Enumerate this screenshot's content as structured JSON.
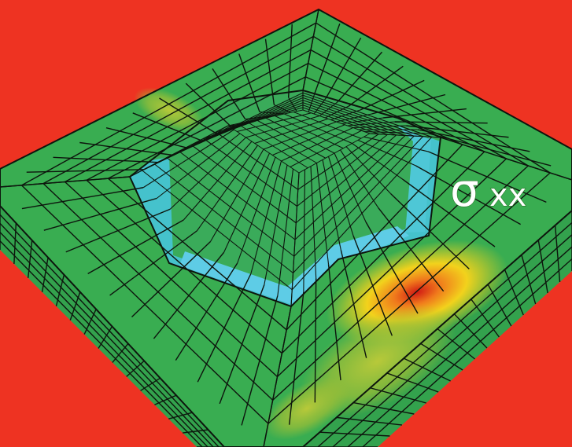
{
  "figure": {
    "label_symbol": "σ",
    "label_subscript": "xx"
  },
  "colors": {
    "background": "#ee3322",
    "mesh_green": "#2fa84f",
    "top_green": "#3aae52",
    "side_dark": "#2b8f45",
    "pit_blue": "#43c2c8",
    "pit_light_blue": "#5cc9e2",
    "stress_yellow": "#f2d21c",
    "stress_orange": "#f08a1c",
    "stress_red": "#e3231c",
    "olive": "#9fbf36",
    "mesh_line": "#101810"
  }
}
